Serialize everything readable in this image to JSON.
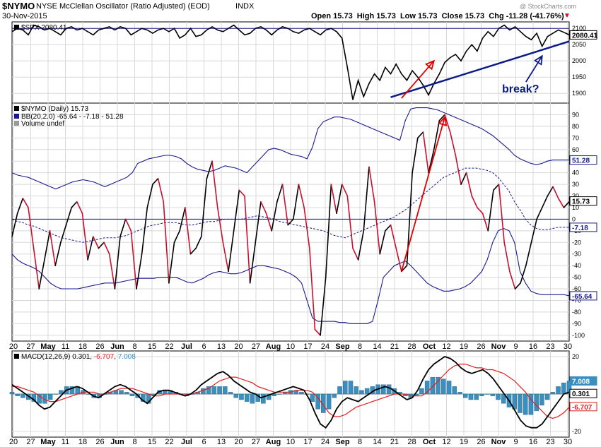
{
  "header": {
    "symbol": "$NYMO",
    "name": "NYSE McClellan Oscillator (Ratio Adjusted) (EOD)",
    "exchange": "INDX",
    "date": "30-Nov-2015",
    "watermark": "@ StockCharts.com",
    "quote_text": "Open 15.73  High 15.73  Low 15.73  Close 15.73  Chg -11.28 (-41.76%)",
    "change_arrow": "▼"
  },
  "colors": {
    "price_line": "#000000",
    "down_segment": "#c8102e",
    "bands": "#1a1a8c",
    "annotation_red": "#e00000",
    "annotation_blue": "#0b1a8a",
    "histogram": "#3a8fbf",
    "macd_signal": "#e02020"
  },
  "annotations": {
    "break_label": "break?"
  },
  "x_axis": {
    "tick_labels": [
      "20",
      "27",
      "May",
      "11",
      "18",
      "26",
      "Jun",
      "8",
      "15",
      "22",
      "Jul",
      "6",
      "13",
      "20",
      "27",
      "Aug",
      "10",
      "17",
      "24",
      "Sep",
      "8",
      "14",
      "21",
      "28",
      "Oct",
      "12",
      "19",
      "26",
      "Nov",
      "9",
      "16",
      "23",
      "30"
    ],
    "bold_labels": [
      "May",
      "Jun",
      "Jul",
      "Aug",
      "Sep",
      "Oct",
      "Nov"
    ]
  },
  "chart_data": [
    {
      "type": "line",
      "panel": "price",
      "legend": "$SPX 2080.41",
      "last_value_label": "2080.41",
      "y_ticks": [
        "2100",
        "2050",
        "2000",
        "1950",
        "1900"
      ],
      "ylim": [
        1870,
        2120
      ],
      "series": [
        {
          "name": "$SPX",
          "values": [
            2090,
            2100,
            2095,
            2080,
            2110,
            2105,
            2095,
            2100,
            2090,
            2080,
            2100,
            2105,
            2095,
            2100,
            2090,
            2080,
            2095,
            2100,
            2105,
            2095,
            2105,
            2100,
            2080,
            2090,
            2100,
            2095,
            2085,
            2095,
            2100,
            2090,
            2100,
            2070,
            2080,
            2100,
            2075,
            2080,
            2095,
            2105,
            2095,
            2090,
            2100,
            2110,
            2095,
            2080,
            2085,
            2100,
            2105,
            2095,
            2080,
            2095,
            2105,
            2100,
            2090,
            2085,
            2095,
            2100,
            2090,
            2080,
            2095,
            2100,
            2090,
            2070,
            1980,
            1880,
            1940,
            1890,
            1930,
            1960,
            1940,
            1980,
            1960,
            1990,
            1960,
            1940,
            1970,
            1950,
            1925,
            1895,
            1930,
            1960,
            1995,
            2010,
            2020,
            2000,
            2030,
            2050,
            2030,
            2070,
            2090,
            2075,
            2100,
            2110,
            2095,
            2105,
            2090,
            2075,
            2065,
            2085,
            2045,
            2075,
            2085,
            2095,
            2088,
            2080
          ]
        }
      ]
    },
    {
      "type": "line",
      "panel": "oscillator",
      "legend": "$NYMO (Daily) 15.73",
      "legend_bb": "BB(20,2.0) -65.64 - -7.18 - 51.28",
      "legend_volume": "Volume undef",
      "y_ticks": [
        "90",
        "80",
        "70",
        "60",
        "50",
        "40",
        "30",
        "20",
        "10",
        "0",
        "-10",
        "-20",
        "-30",
        "-40",
        "-50",
        "-60",
        "-70",
        "-80",
        "-90",
        "-100"
      ],
      "ylim": [
        -105,
        100
      ],
      "value_labels": {
        "upper": "51.28",
        "close": "15.73",
        "middle": "-7.18",
        "lower": "-65.64"
      },
      "series": [
        {
          "name": "$NYMO",
          "values": [
            -15,
            5,
            18,
            10,
            -25,
            -60,
            -35,
            -10,
            -40,
            -20,
            -5,
            10,
            15,
            5,
            -35,
            -15,
            -25,
            -20,
            -30,
            -60,
            -15,
            0,
            -10,
            -60,
            -30,
            10,
            30,
            35,
            15,
            -55,
            -20,
            -10,
            10,
            -30,
            -25,
            -15,
            35,
            50,
            10,
            -20,
            -45,
            -10,
            25,
            20,
            -55,
            -20,
            15,
            5,
            -10,
            15,
            30,
            -5,
            0,
            30,
            10,
            -25,
            -95,
            -100,
            -50,
            30,
            5,
            30,
            20,
            -25,
            -35,
            -10,
            45,
            15,
            -30,
            -10,
            -5,
            -25,
            -45,
            -40,
            40,
            70,
            75,
            40,
            60,
            85,
            90,
            75,
            55,
            30,
            40,
            20,
            10,
            5,
            -10,
            25,
            30,
            -20,
            -45,
            -60,
            -55,
            -40,
            -20,
            0,
            10,
            20,
            28,
            18,
            10,
            15
          ]
        },
        {
          "name": "BB upper",
          "values": [
            40,
            38,
            37,
            36,
            34,
            32,
            30,
            28,
            26,
            28,
            30,
            32,
            33,
            34,
            33,
            32,
            30,
            28,
            30,
            32,
            34,
            36,
            40,
            48,
            50,
            52,
            53,
            54,
            55,
            55,
            54,
            52,
            48,
            45,
            43,
            42,
            41,
            42,
            44,
            46,
            45,
            44,
            42,
            40,
            45,
            50,
            55,
            60,
            61,
            60,
            58,
            56,
            55,
            54,
            52,
            62,
            78,
            84,
            86,
            88,
            88,
            87,
            86,
            84,
            82,
            80,
            78,
            76,
            74,
            72,
            70,
            68,
            85,
            95,
            96,
            96,
            96,
            95,
            94,
            92,
            90,
            88,
            86,
            84,
            82,
            80,
            78,
            75,
            72,
            68,
            64,
            60,
            55,
            52,
            50,
            48,
            47,
            48,
            50,
            51,
            51,
            51,
            51
          ]
        },
        {
          "name": "BB middle",
          "values": [
            0,
            -2,
            -3,
            -5,
            -6,
            -8,
            -10,
            -12,
            -14,
            -16,
            -17,
            -18,
            -19,
            -20,
            -19,
            -18,
            -17,
            -16,
            -16,
            -16,
            -15,
            -14,
            -12,
            -10,
            -8,
            -6,
            -5,
            -4,
            -3,
            -3,
            -3,
            -4,
            -5,
            -5,
            -4,
            -3,
            -2,
            -2,
            -1,
            0,
            0,
            0,
            0,
            1,
            2,
            3,
            2,
            1,
            0,
            -2,
            -3,
            -4,
            -5,
            -6,
            -7,
            -8,
            -9,
            -10,
            -12,
            -14,
            -15,
            -16,
            -14,
            -12,
            -10,
            -8,
            -6,
            -4,
            -2,
            0,
            2,
            5,
            8,
            12,
            16,
            20,
            24,
            28,
            32,
            36,
            38,
            40,
            42,
            44,
            44,
            44,
            43,
            42,
            40,
            36,
            30,
            24,
            15,
            8,
            0,
            -5,
            -8,
            -9,
            -9,
            -8,
            -7,
            -7,
            -7
          ]
        },
        {
          "name": "BB lower",
          "values": [
            -30,
            -35,
            -38,
            -40,
            -42,
            -45,
            -50,
            -55,
            -58,
            -60,
            -60,
            -60,
            -60,
            -59,
            -58,
            -57,
            -56,
            -55,
            -55,
            -55,
            -54,
            -53,
            -52,
            -51,
            -51,
            -51,
            -51,
            -50,
            -50,
            -50,
            -50,
            -52,
            -54,
            -55,
            -53,
            -51,
            -48,
            -46,
            -45,
            -46,
            -47,
            -47,
            -46,
            -44,
            -42,
            -40,
            -40,
            -41,
            -42,
            -43,
            -45,
            -47,
            -50,
            -55,
            -70,
            -85,
            -88,
            -88,
            -88,
            -88,
            -89,
            -89,
            -90,
            -90,
            -90,
            -90,
            -88,
            -70,
            -50,
            -45,
            -40,
            -38,
            -36,
            -40,
            -45,
            -50,
            -55,
            -58,
            -60,
            -62,
            -62,
            -61,
            -60,
            -58,
            -55,
            -50,
            -45,
            -35,
            -20,
            -10,
            -8,
            -10,
            -20,
            -45,
            -55,
            -62,
            -64,
            -65,
            -65,
            -65,
            -65,
            -65,
            -66
          ]
        }
      ]
    },
    {
      "type": "line",
      "panel": "macd",
      "legend": "MACD(12,26,9) 0.301, -6.707, 7.008",
      "legend_parts": {
        "prefix": "MACD(12,26,9) 0.301, ",
        "signal": "-6.707",
        "sep": ", ",
        "hist": "7.008"
      },
      "y_ticks": [
        "20",
        "0",
        "-20"
      ],
      "ylim": [
        -23,
        23
      ],
      "value_labels": {
        "hist": "7.008",
        "macd": "0.301",
        "signal": "-6.707"
      },
      "series": [
        {
          "name": "MACD",
          "values": [
            5,
            3,
            1,
            -1,
            -3,
            -6,
            -8,
            -7,
            -4,
            -1,
            2,
            3,
            4,
            3,
            1,
            -1,
            -2,
            0,
            2,
            4,
            5,
            4,
            2,
            0,
            -3,
            -5,
            -2,
            1,
            2,
            2,
            1,
            0,
            -1,
            0,
            2,
            5,
            7,
            9,
            11,
            12,
            10,
            7,
            5,
            3,
            1,
            0,
            -2,
            -1,
            0,
            1,
            2,
            3,
            4,
            3,
            2,
            -3,
            -10,
            -16,
            -18,
            -14,
            -8,
            -4,
            -2,
            -3,
            -4,
            -2,
            0,
            2,
            3,
            4,
            3,
            1,
            -1,
            -3,
            -2,
            2,
            8,
            13,
            16,
            18,
            20,
            19,
            17,
            14,
            12,
            11,
            12,
            13,
            11,
            8,
            4,
            0,
            -4,
            -9,
            -14,
            -17,
            -18,
            -18,
            -16,
            -12,
            -8,
            -4,
            0,
            1
          ]
        },
        {
          "name": "Signal",
          "values": [
            4,
            4,
            3,
            2,
            1,
            -1,
            -3,
            -4,
            -4,
            -3,
            -2,
            -1,
            0,
            1,
            1,
            1,
            0,
            0,
            1,
            2,
            3,
            3,
            3,
            2,
            1,
            0,
            -1,
            -1,
            0,
            0,
            0,
            0,
            0,
            0,
            1,
            2,
            3,
            5,
            7,
            8,
            9,
            9,
            8,
            7,
            6,
            4,
            3,
            2,
            1,
            1,
            1,
            1,
            2,
            2,
            2,
            1,
            -2,
            -6,
            -10,
            -12,
            -12,
            -11,
            -9,
            -7,
            -6,
            -5,
            -4,
            -3,
            -2,
            -1,
            0,
            0,
            0,
            -1,
            -1,
            -1,
            1,
            4,
            7,
            10,
            13,
            15,
            16,
            16,
            15,
            14,
            14,
            13,
            13,
            12,
            11,
            9,
            7,
            4,
            1,
            -3,
            -6,
            -9,
            -12,
            -13,
            -12,
            -10,
            -7
          ]
        },
        {
          "name": "Histogram",
          "values": [
            1,
            -1,
            -2,
            -3,
            -4,
            -5,
            -5,
            -3,
            0,
            2,
            4,
            4,
            4,
            2,
            0,
            -2,
            -2,
            0,
            1,
            2,
            2,
            1,
            -1,
            -2,
            -4,
            -5,
            -1,
            2,
            2,
            2,
            1,
            0,
            -1,
            0,
            1,
            3,
            4,
            4,
            4,
            4,
            1,
            -2,
            -3,
            -4,
            -5,
            -4,
            -5,
            -3,
            -1,
            0,
            1,
            2,
            2,
            1,
            0,
            -4,
            -8,
            -10,
            -8,
            -2,
            4,
            7,
            7,
            4,
            2,
            3,
            4,
            5,
            5,
            5,
            3,
            1,
            -1,
            -2,
            -1,
            3,
            7,
            9,
            9,
            8,
            7,
            4,
            1,
            -2,
            -3,
            -3,
            -1,
            0,
            -1,
            -3,
            -5,
            -7,
            -8,
            -10,
            -11,
            -11,
            -9,
            -6,
            -3,
            1,
            4,
            6,
            7
          ]
        }
      ]
    }
  ]
}
